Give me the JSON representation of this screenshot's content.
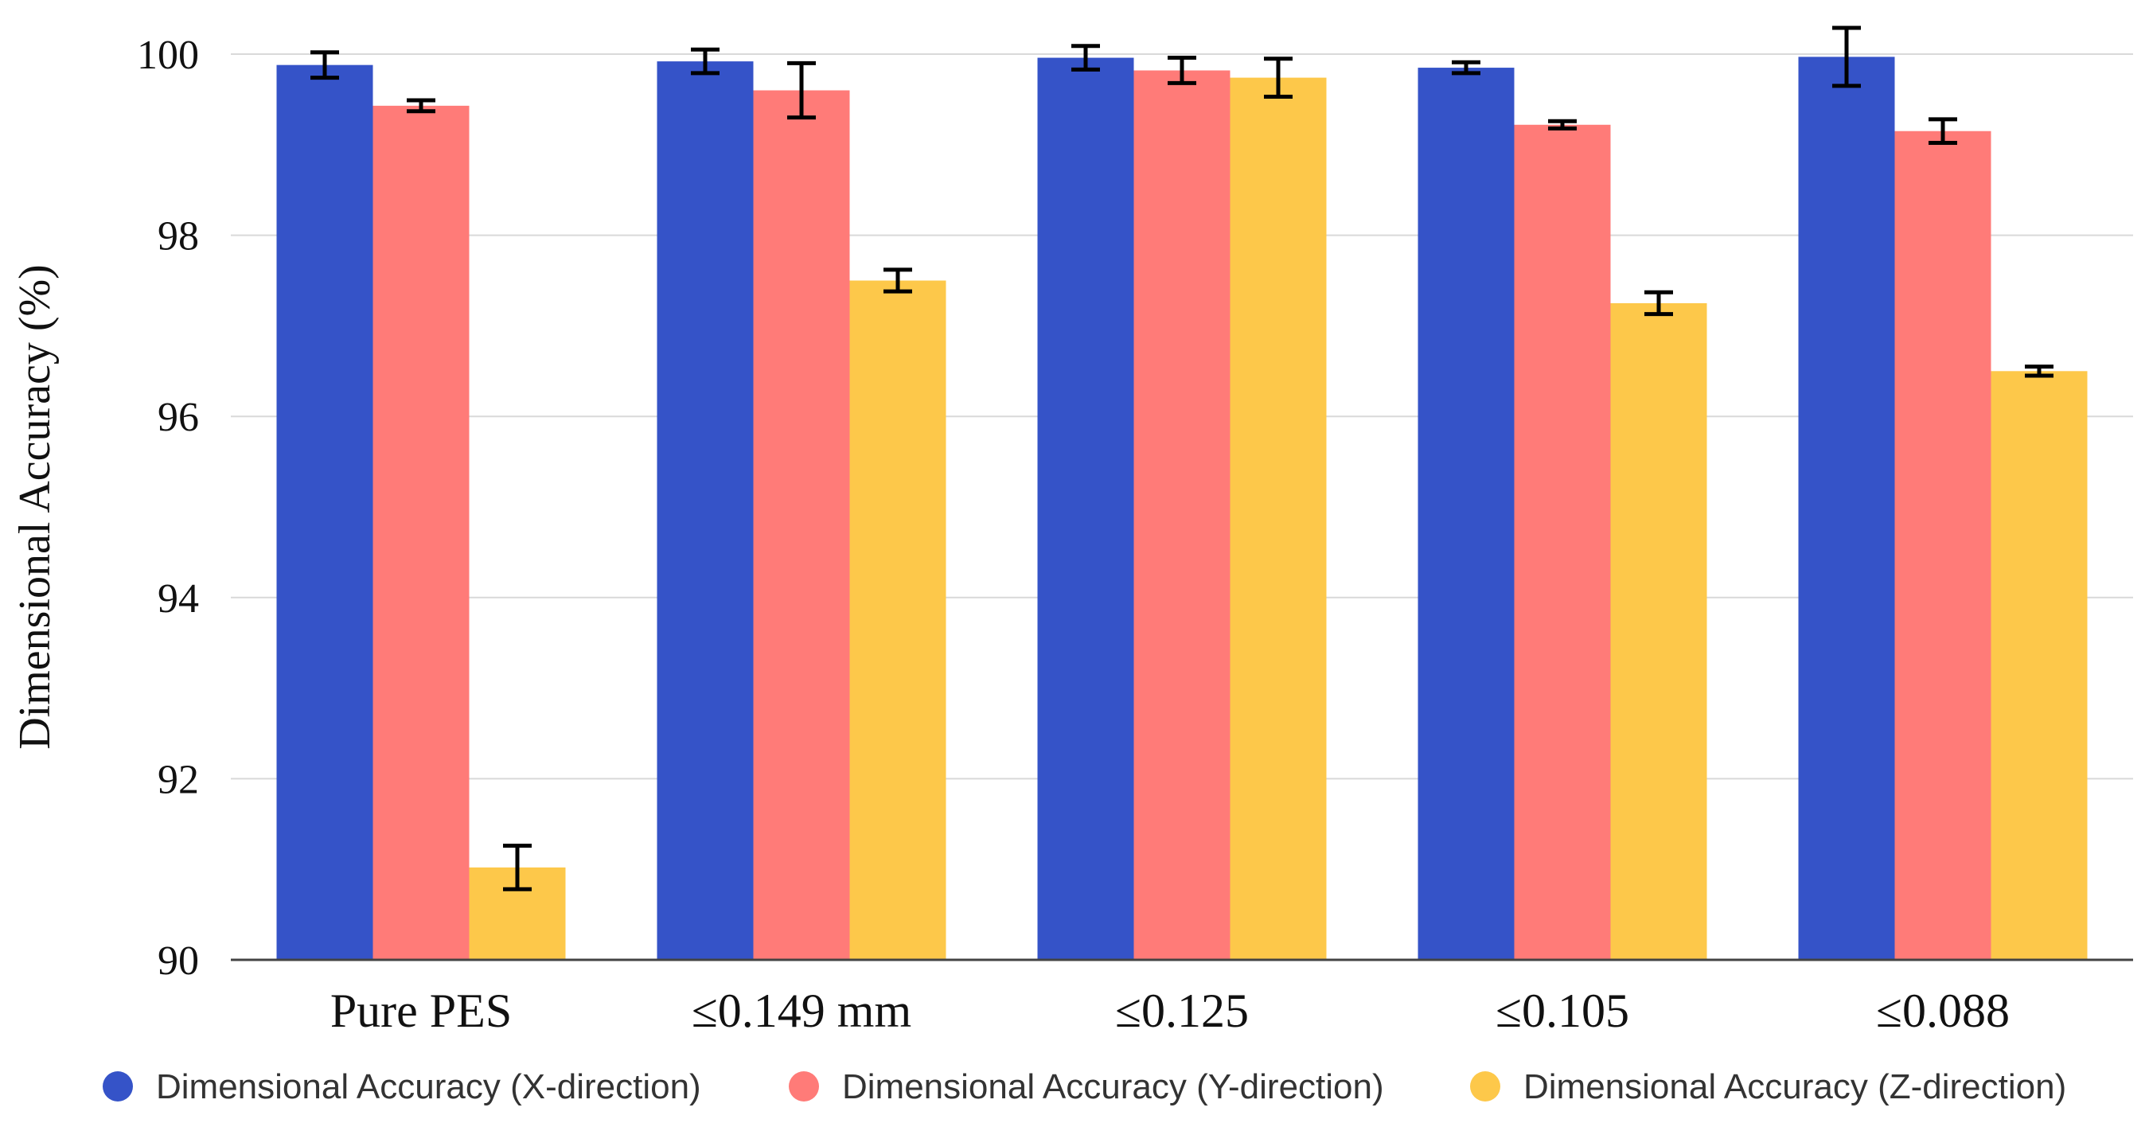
{
  "chart_data": {
    "type": "bar",
    "title": "",
    "xlabel": "",
    "ylabel": "Dimensional Accuracy (%)",
    "ylim": [
      90,
      100
    ],
    "yticks": [
      90,
      92,
      94,
      96,
      98,
      100
    ],
    "grid": true,
    "legend_position": "bottom",
    "categories": [
      "Pure PES",
      "≤0.149 mm",
      "≤0.125",
      "≤0.105",
      "≤0.088"
    ],
    "series": [
      {
        "name": "Dimensional Accuracy (X-direction)",
        "color": "#3553c8",
        "values": [
          99.88,
          99.92,
          99.96,
          99.85,
          99.97
        ],
        "errors": [
          0.14,
          0.13,
          0.13,
          0.06,
          0.32
        ]
      },
      {
        "name": "Dimensional Accuracy (Y-direction)",
        "color": "#ff7b78",
        "values": [
          99.43,
          99.6,
          99.82,
          99.22,
          99.15
        ],
        "errors": [
          0.06,
          0.3,
          0.14,
          0.04,
          0.13
        ]
      },
      {
        "name": "Dimensional Accuracy (Z-direction)",
        "color": "#fdc84a",
        "values": [
          91.02,
          97.5,
          99.74,
          97.25,
          96.5
        ],
        "errors": [
          0.24,
          0.12,
          0.21,
          0.12,
          0.05
        ]
      }
    ]
  }
}
